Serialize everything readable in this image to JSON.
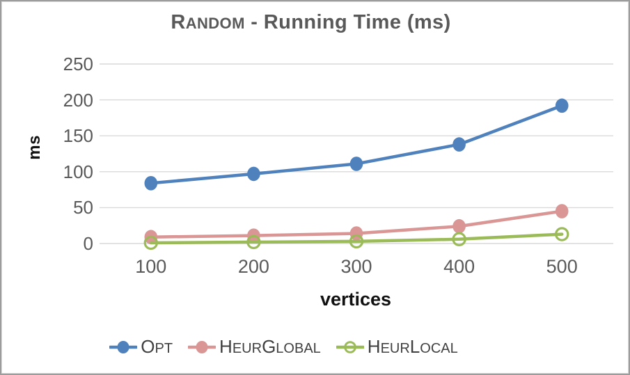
{
  "title": {
    "full": "Random - Running Time (ms)",
    "color": "#595959",
    "segments": [
      {
        "t": "R",
        "s": "big"
      },
      {
        "t": "ANDOM",
        "s": "small"
      },
      {
        "t": " - Running Time (ms)",
        "s": "big"
      }
    ]
  },
  "chart_data": {
    "type": "line",
    "title": "Random - Running Time (ms)",
    "xlabel": "vertices",
    "ylabel": "ms",
    "categories": [
      100,
      200,
      300,
      400,
      500
    ],
    "series": [
      {
        "name": "Opt",
        "color": "#4F81BD",
        "marker": "filled-circle",
        "values": [
          84,
          97,
          111,
          138,
          192
        ]
      },
      {
        "name": "HeurGlobal",
        "color": "#D99694",
        "marker": "filled-circle",
        "values": [
          9,
          11,
          14,
          24,
          45
        ]
      },
      {
        "name": "HeurLocal",
        "color": "#9BBB59",
        "marker": "open-circle",
        "values": [
          1,
          2,
          3,
          6,
          13
        ]
      }
    ],
    "ylim": [
      0,
      250
    ],
    "yticks": [
      0,
      50,
      100,
      150,
      200,
      250
    ],
    "grid": "horizontal-only",
    "gridline_color": "#D9D9D9",
    "tick_text_color": "#595959",
    "legend_position": "bottom"
  },
  "axis_titles": {
    "y": "ms",
    "x": "vertices",
    "color": "#1A1A1A"
  },
  "legend": {
    "text_color": "#404040",
    "items": [
      {
        "series": "Opt",
        "segments": [
          {
            "t": "O",
            "s": "big"
          },
          {
            "t": "PT",
            "s": "small"
          }
        ]
      },
      {
        "series": "HeurGlobal",
        "segments": [
          {
            "t": "H",
            "s": "big"
          },
          {
            "t": "EUR",
            "s": "small"
          },
          {
            "t": "G",
            "s": "big"
          },
          {
            "t": "LOBAL",
            "s": "small"
          }
        ]
      },
      {
        "series": "HeurLocal",
        "segments": [
          {
            "t": "H",
            "s": "big"
          },
          {
            "t": "EUR",
            "s": "small"
          },
          {
            "t": "L",
            "s": "big"
          },
          {
            "t": "OCAL",
            "s": "small"
          }
        ]
      }
    ]
  },
  "colors": {
    "border": "#9C9C9C",
    "background": "#FFFFFF"
  }
}
